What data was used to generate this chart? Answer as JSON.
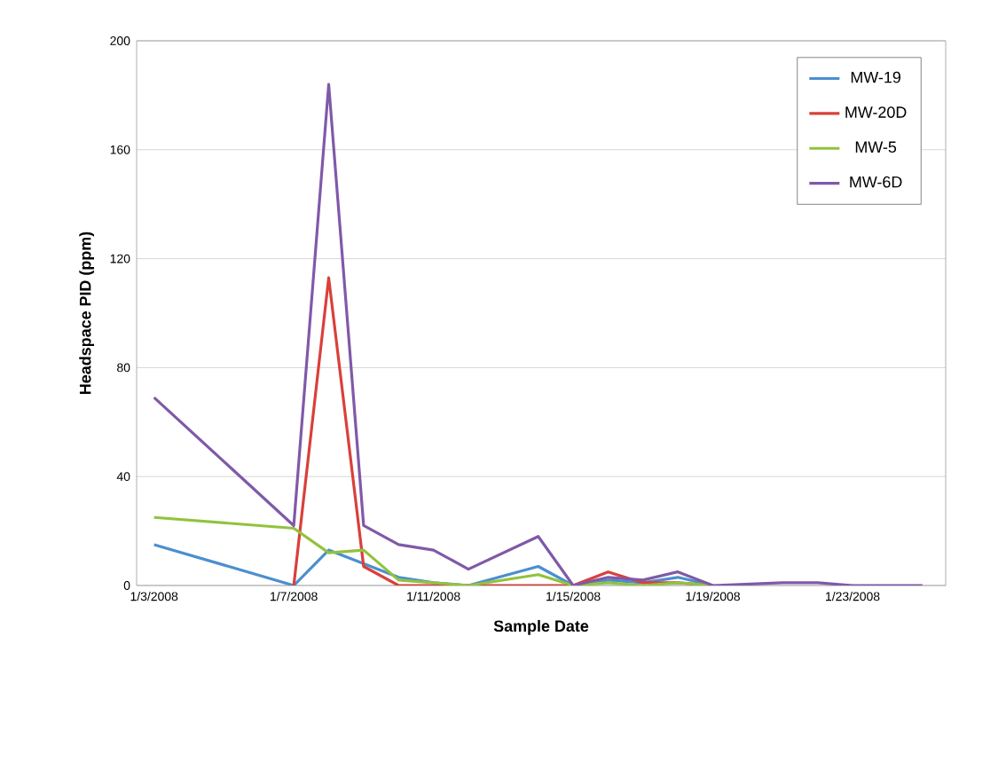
{
  "chart_data": {
    "type": "line",
    "xlabel": "Sample Date",
    "ylabel": "Headspace PID (ppm)",
    "xlim": [
      "2008-01-02T12:00",
      "2008-01-25T16:00"
    ],
    "xticks": [
      {
        "value": "2008-01-03",
        "label": "1/3/2008"
      },
      {
        "value": "2008-01-07",
        "label": "1/7/2008"
      },
      {
        "value": "2008-01-11",
        "label": "1/11/2008"
      },
      {
        "value": "2008-01-15",
        "label": "1/15/2008"
      },
      {
        "value": "2008-01-19",
        "label": "1/19/2008"
      },
      {
        "value": "2008-01-23",
        "label": "1/23/2008"
      }
    ],
    "ylim": [
      0,
      200
    ],
    "yticks": [
      0,
      40,
      80,
      120,
      160,
      200
    ],
    "grid": "y",
    "legend": "top right",
    "marker": "none",
    "line_style": "solid",
    "series": [
      {
        "name": "MW-19",
        "color": "#4a8fd0",
        "x": [
          "2008-01-03",
          "2008-01-07",
          "2008-01-08",
          "2008-01-09",
          "2008-01-10",
          "2008-01-11",
          "2008-01-12",
          "2008-01-14",
          "2008-01-15",
          "2008-01-16",
          "2008-01-17",
          "2008-01-18",
          "2008-01-19"
        ],
        "values": [
          15,
          0,
          13,
          8,
          3,
          1,
          0,
          7,
          0,
          2,
          1,
          3,
          0
        ]
      },
      {
        "name": "MW-20D",
        "color": "#d9403a",
        "x": [
          "2008-01-07",
          "2008-01-08",
          "2008-01-09",
          "2008-01-10",
          "2008-01-11",
          "2008-01-12",
          "2008-01-14",
          "2008-01-15",
          "2008-01-16",
          "2008-01-17",
          "2008-01-18",
          "2008-01-19"
        ],
        "values": [
          0,
          113,
          7,
          0,
          0,
          0,
          0,
          0,
          5,
          1,
          1,
          0
        ]
      },
      {
        "name": "MW-5",
        "color": "#92c23e",
        "x": [
          "2008-01-03",
          "2008-01-07",
          "2008-01-08",
          "2008-01-09",
          "2008-01-10",
          "2008-01-11",
          "2008-01-12",
          "2008-01-14",
          "2008-01-15",
          "2008-01-16",
          "2008-01-17",
          "2008-01-18",
          "2008-01-19"
        ],
        "values": [
          25,
          21,
          12,
          13,
          2,
          1,
          0,
          4,
          0,
          1,
          0,
          1,
          0
        ]
      },
      {
        "name": "MW-6D",
        "color": "#8059a8",
        "x": [
          "2008-01-03",
          "2008-01-07",
          "2008-01-08",
          "2008-01-09",
          "2008-01-10",
          "2008-01-11",
          "2008-01-12",
          "2008-01-14",
          "2008-01-15",
          "2008-01-16",
          "2008-01-17",
          "2008-01-18",
          "2008-01-19",
          "2008-01-21",
          "2008-01-22",
          "2008-01-23",
          "2008-01-25"
        ],
        "values": [
          69,
          22,
          184,
          22,
          15,
          13,
          6,
          18,
          0,
          3,
          2,
          5,
          0,
          1,
          1,
          0,
          0
        ]
      }
    ]
  }
}
